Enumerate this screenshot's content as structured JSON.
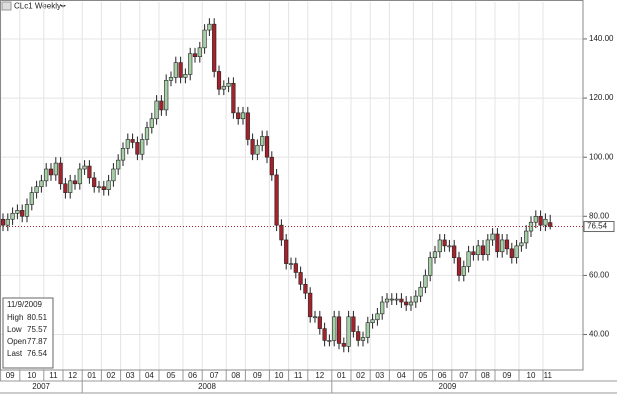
{
  "chart_data": {
    "type": "candlestick",
    "title": "CLc1 Weekly",
    "open": [
      79,
      77,
      79,
      81,
      82,
      80,
      84,
      88,
      90,
      92,
      96,
      94,
      98,
      91,
      88,
      92,
      91,
      96,
      97,
      93,
      90,
      90,
      89,
      92,
      96,
      99,
      103,
      106,
      105,
      101,
      106,
      110,
      113,
      119,
      116,
      126,
      127,
      132,
      127,
      128,
      135,
      134,
      137,
      143,
      145,
      129,
      123,
      124,
      125,
      115,
      113,
      115,
      106,
      101,
      104,
      107,
      100,
      94,
      77,
      72,
      64,
      64,
      61,
      57,
      54,
      46,
      46,
      42,
      38,
      38,
      46,
      37,
      36,
      46,
      41,
      38,
      39,
      44,
      45,
      47,
      51,
      52,
      52,
      52,
      51,
      50,
      51,
      53,
      56,
      60,
      66,
      68,
      72,
      70,
      70,
      66,
      60,
      63,
      68,
      67,
      70,
      67,
      72,
      74,
      68,
      72,
      69,
      66,
      70,
      71,
      75,
      78,
      80,
      77,
      77.87
    ],
    "high": [
      81,
      81,
      83,
      84,
      84,
      86,
      90,
      92,
      94,
      98,
      98,
      100,
      100,
      93,
      94,
      94,
      98,
      99,
      99,
      95,
      92,
      92,
      94,
      98,
      101,
      105,
      108,
      108,
      107,
      108,
      112,
      115,
      121,
      121,
      128,
      129,
      134,
      134,
      130,
      137,
      137,
      139,
      145,
      147,
      147,
      131,
      126,
      127,
      127,
      117,
      117,
      117,
      108,
      106,
      109,
      109,
      102,
      96,
      79,
      74,
      66,
      66,
      63,
      59,
      56,
      48,
      48,
      44,
      40,
      48,
      48,
      39,
      48,
      48,
      43,
      41,
      46,
      47,
      49,
      53,
      54,
      54,
      54,
      54,
      53,
      53,
      55,
      58,
      62,
      68,
      70,
      74,
      74,
      72,
      72,
      68,
      65,
      70,
      70,
      72,
      72,
      74,
      76,
      76,
      74,
      74,
      71,
      72,
      73,
      77,
      80,
      82,
      82,
      81,
      80.51
    ],
    "low": [
      75,
      75,
      77,
      79,
      78,
      78,
      82,
      86,
      88,
      90,
      92,
      92,
      89,
      86,
      86,
      89,
      89,
      94,
      91,
      88,
      88,
      87,
      87,
      90,
      94,
      97,
      101,
      103,
      99,
      99,
      104,
      108,
      111,
      114,
      114,
      124,
      125,
      125,
      125,
      126,
      132,
      132,
      135,
      141,
      127,
      121,
      121,
      122,
      113,
      111,
      111,
      104,
      99,
      99,
      102,
      98,
      92,
      75,
      70,
      62,
      62,
      59,
      55,
      52,
      44,
      44,
      40,
      36,
      36,
      36,
      35,
      34,
      34,
      39,
      36,
      36,
      37,
      42,
      43,
      45,
      49,
      50,
      50,
      49,
      48,
      48,
      49,
      51,
      54,
      58,
      64,
      66,
      68,
      68,
      64,
      58,
      58,
      61,
      65,
      65,
      65,
      65,
      70,
      66,
      66,
      67,
      64,
      64,
      68,
      69,
      73,
      76,
      75,
      75,
      75.57
    ],
    "close": [
      77,
      79,
      81,
      82,
      80,
      84,
      88,
      90,
      92,
      96,
      94,
      98,
      91,
      88,
      92,
      91,
      96,
      97,
      93,
      90,
      90,
      89,
      92,
      96,
      99,
      103,
      106,
      105,
      101,
      106,
      110,
      113,
      119,
      116,
      126,
      127,
      132,
      127,
      128,
      135,
      134,
      137,
      143,
      145,
      129,
      123,
      124,
      125,
      115,
      113,
      115,
      106,
      101,
      104,
      107,
      100,
      94,
      77,
      72,
      64,
      64,
      61,
      57,
      54,
      46,
      46,
      42,
      38,
      38,
      46,
      37,
      36,
      46,
      41,
      38,
      39,
      44,
      45,
      47,
      51,
      52,
      52,
      52,
      51,
      50,
      51,
      53,
      56,
      60,
      66,
      68,
      72,
      70,
      70,
      66,
      60,
      63,
      68,
      67,
      70,
      67,
      72,
      74,
      68,
      72,
      69,
      66,
      70,
      71,
      75,
      78,
      80,
      77,
      79,
      76.54
    ],
    "up_color": "#a8d0a8",
    "down_color": "#a3222c",
    "ylim": [
      28,
      152.5
    ],
    "yticks": [
      {
        "value": 40,
        "label": "40.00"
      },
      {
        "value": 60,
        "label": "60.00"
      },
      {
        "value": 80,
        "label": "80.00"
      },
      {
        "value": 100,
        "label": "100.00"
      },
      {
        "value": 120,
        "label": "120.00"
      },
      {
        "value": 140,
        "label": "140.00"
      }
    ],
    "xticks": [
      {
        "value": 0,
        "label": "09"
      },
      {
        "value": 4,
        "label": "10"
      },
      {
        "value": 9,
        "label": "11"
      },
      {
        "value": 13,
        "label": "12"
      },
      {
        "value": 17,
        "label": "01"
      },
      {
        "value": 21,
        "label": "02"
      },
      {
        "value": 25,
        "label": "03"
      },
      {
        "value": 29,
        "label": "04"
      },
      {
        "value": 33,
        "label": "05"
      },
      {
        "value": 38,
        "label": "06"
      },
      {
        "value": 42,
        "label": "07"
      },
      {
        "value": 47,
        "label": "08"
      },
      {
        "value": 51,
        "label": "09"
      },
      {
        "value": 56,
        "label": "10"
      },
      {
        "value": 60,
        "label": "11"
      },
      {
        "value": 64,
        "label": "12"
      },
      {
        "value": 69,
        "label": "01"
      },
      {
        "value": 73,
        "label": "02"
      },
      {
        "value": 77,
        "label": "03"
      },
      {
        "value": 81,
        "label": "04"
      },
      {
        "value": 86,
        "label": "05"
      },
      {
        "value": 90,
        "label": "06"
      },
      {
        "value": 94,
        "label": "07"
      },
      {
        "value": 99,
        "label": "08"
      },
      {
        "value": 103,
        "label": "09"
      },
      {
        "value": 108,
        "label": "10"
      },
      {
        "value": 113,
        "label": "11"
      }
    ],
    "years": [
      "2007",
      "2008",
      "2009"
    ],
    "grid": true,
    "info_date": "11/9/2009",
    "info_labels": [
      "High",
      "Low",
      "Open",
      "Last"
    ]
  }
}
